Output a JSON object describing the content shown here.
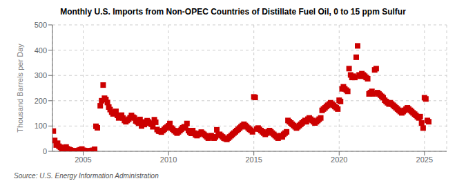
{
  "chart_data": {
    "type": "scatter",
    "title": "Monthly U.S. Imports from Non-OPEC Countries of Distillate Fuel Oil, 0 to 15 ppm Sulfur",
    "y_label": "Thousand Barrels per Day",
    "annotations": [
      "Source: U.S. Energy Information Administration"
    ],
    "color": "#cc0000",
    "marker": "square",
    "grid": true,
    "xlim": [
      2003.2,
      2026.3
    ],
    "xticks": [
      2005,
      2010,
      2015,
      2020,
      2025
    ],
    "ylim": [
      0,
      500
    ],
    "yticks": [
      0,
      100,
      200,
      300,
      400,
      500
    ],
    "x": [
      2003.25,
      2003.33,
      2003.42,
      2003.5,
      2003.58,
      2003.67,
      2003.75,
      2003.83,
      2003.92,
      2004.0,
      2004.08,
      2004.17,
      2004.25,
      2004.33,
      2004.42,
      2004.5,
      2004.58,
      2004.67,
      2004.75,
      2004.83,
      2004.92,
      2005.0,
      2005.08,
      2005.17,
      2005.25,
      2005.33,
      2005.42,
      2005.5,
      2005.58,
      2005.67,
      2005.75,
      2005.83,
      2006.0,
      2006.08,
      2006.17,
      2006.25,
      2006.33,
      2006.42,
      2006.5,
      2006.58,
      2006.67,
      2006.75,
      2006.83,
      2006.92,
      2007.0,
      2007.08,
      2007.17,
      2007.25,
      2007.33,
      2007.42,
      2007.5,
      2007.58,
      2007.67,
      2007.75,
      2007.83,
      2007.92,
      2008.0,
      2008.08,
      2008.17,
      2008.25,
      2008.33,
      2008.42,
      2008.5,
      2008.58,
      2008.67,
      2008.75,
      2008.83,
      2008.92,
      2009.0,
      2009.08,
      2009.17,
      2009.25,
      2009.33,
      2009.42,
      2009.5,
      2009.58,
      2009.67,
      2009.75,
      2009.83,
      2009.92,
      2010.0,
      2010.08,
      2010.17,
      2010.25,
      2010.33,
      2010.42,
      2010.5,
      2010.58,
      2010.67,
      2010.75,
      2010.83,
      2010.92,
      2011.0,
      2011.08,
      2011.17,
      2011.25,
      2011.33,
      2011.42,
      2011.5,
      2011.58,
      2011.67,
      2011.75,
      2011.83,
      2011.92,
      2012.0,
      2012.08,
      2012.17,
      2012.25,
      2012.33,
      2012.42,
      2012.5,
      2012.58,
      2012.67,
      2012.75,
      2012.83,
      2012.92,
      2013.0,
      2013.08,
      2013.17,
      2013.25,
      2013.33,
      2013.42,
      2013.5,
      2013.58,
      2013.67,
      2013.75,
      2013.83,
      2013.92,
      2014.0,
      2014.08,
      2014.17,
      2014.25,
      2014.33,
      2014.42,
      2014.5,
      2014.58,
      2014.67,
      2014.75,
      2014.83,
      2014.92,
      2015.0,
      2015.08,
      2015.17,
      2015.25,
      2015.33,
      2015.42,
      2015.5,
      2015.58,
      2015.67,
      2015.75,
      2015.83,
      2015.92,
      2016.0,
      2016.08,
      2016.17,
      2016.25,
      2016.33,
      2016.42,
      2016.5,
      2016.58,
      2016.67,
      2016.75,
      2016.83,
      2016.92,
      2017.0,
      2017.08,
      2017.17,
      2017.25,
      2017.33,
      2017.42,
      2017.5,
      2017.58,
      2017.67,
      2017.75,
      2017.83,
      2017.92,
      2018.0,
      2018.08,
      2018.17,
      2018.25,
      2018.33,
      2018.42,
      2018.5,
      2018.58,
      2018.67,
      2018.75,
      2018.83,
      2018.92,
      2019.0,
      2019.08,
      2019.17,
      2019.25,
      2019.33,
      2019.42,
      2019.5,
      2019.58,
      2019.67,
      2019.75,
      2019.83,
      2019.92,
      2020.0,
      2020.08,
      2020.17,
      2020.25,
      2020.33,
      2020.42,
      2020.5,
      2020.58,
      2020.67,
      2020.75,
      2020.83,
      2020.92,
      2021.0,
      2021.08,
      2021.17,
      2021.25,
      2021.33,
      2021.42,
      2021.5,
      2021.58,
      2021.67,
      2021.75,
      2021.83,
      2021.92,
      2022.0,
      2022.08,
      2022.17,
      2022.25,
      2022.33,
      2022.42,
      2022.5,
      2022.58,
      2022.67,
      2022.75,
      2022.83,
      2022.92,
      2023.0,
      2023.08,
      2023.17,
      2023.25,
      2023.33,
      2023.42,
      2023.5,
      2023.58,
      2023.67,
      2023.75,
      2023.83,
      2023.92,
      2024.0,
      2024.08,
      2024.17,
      2024.25,
      2024.33,
      2024.42,
      2024.5,
      2024.58,
      2024.67,
      2024.75,
      2024.83,
      2024.92,
      2025.0,
      2025.08,
      2025.17,
      2025.25
    ],
    "values": [
      80,
      43,
      25,
      32,
      20,
      16,
      10,
      9,
      13,
      17,
      10,
      7,
      5,
      3,
      2,
      1,
      0,
      2,
      4,
      6,
      9,
      4,
      3,
      1,
      1,
      1,
      2,
      3,
      4,
      8,
      99,
      93,
      180,
      200,
      262,
      210,
      205,
      193,
      175,
      165,
      155,
      148,
      152,
      158,
      142,
      132,
      136,
      143,
      132,
      122,
      117,
      122,
      127,
      133,
      142,
      135,
      132,
      120,
      116,
      111,
      126,
      100,
      116,
      106,
      112,
      121,
      116,
      111,
      107,
      97,
      125,
      115,
      86,
      80,
      79,
      76,
      82,
      87,
      92,
      96,
      101,
      110,
      92,
      87,
      82,
      77,
      72,
      77,
      82,
      87,
      93,
      97,
      92,
      110,
      82,
      76,
      71,
      82,
      72,
      65,
      62,
      67,
      71,
      76,
      71,
      67,
      62,
      57,
      52,
      57,
      62,
      57,
      52,
      57,
      85,
      66,
      67,
      62,
      57,
      52,
      50,
      47,
      52,
      57,
      62,
      67,
      72,
      77,
      82,
      87,
      92,
      97,
      102,
      107,
      102,
      97,
      92,
      87,
      83,
      77,
      215,
      213,
      88,
      92,
      87,
      82,
      77,
      72,
      67,
      72,
      77,
      82,
      77,
      72,
      67,
      62,
      57,
      52,
      57,
      62,
      57,
      67,
      72,
      77,
      122,
      117,
      112,
      107,
      102,
      97,
      92,
      97,
      102,
      107,
      112,
      117,
      122,
      117,
      127,
      132,
      127,
      122,
      117,
      112,
      117,
      122,
      127,
      132,
      162,
      167,
      172,
      177,
      182,
      187,
      192,
      187,
      182,
      177,
      172,
      167,
      202,
      197,
      247,
      255,
      247,
      242,
      237,
      327,
      302,
      292,
      297,
      292,
      372,
      417,
      302,
      297,
      307,
      302,
      297,
      292,
      287,
      227,
      232,
      237,
      227,
      322,
      327,
      232,
      227,
      222,
      217,
      212,
      202,
      197,
      192,
      187,
      192,
      187,
      182,
      177,
      172,
      167,
      162,
      157,
      152,
      157,
      162,
      167,
      172,
      167,
      162,
      157,
      152,
      147,
      142,
      137,
      132,
      137,
      112,
      92,
      212,
      207,
      122,
      117
    ]
  }
}
